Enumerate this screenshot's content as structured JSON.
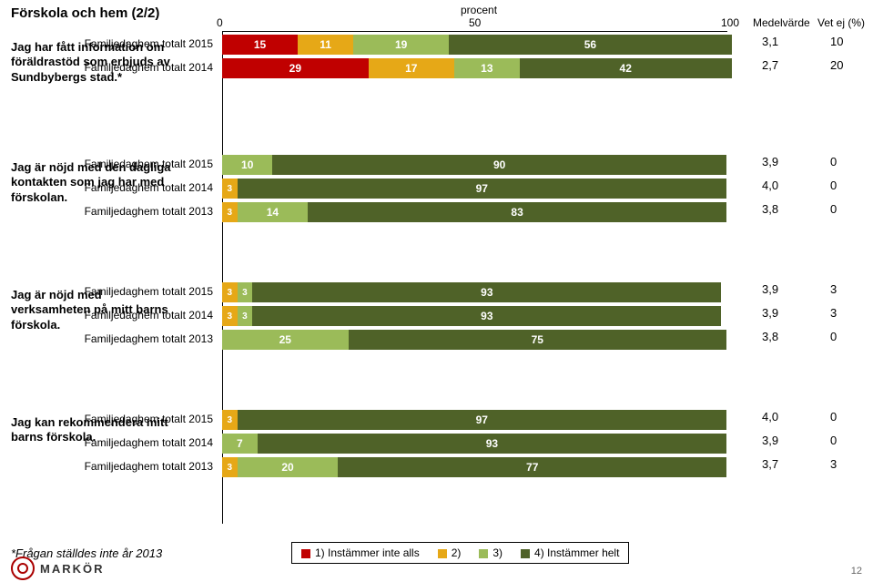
{
  "colors": {
    "c1": "#c00000",
    "c2": "#e6a817",
    "c3": "#9bbb59",
    "c4": "#4f6228",
    "text_on_dark": "#ffffff"
  },
  "title": "Förskola och hem (2/2)",
  "axis_title": "procent",
  "ticks": [
    {
      "v": 0,
      "label": "0"
    },
    {
      "v": 50,
      "label": "50"
    },
    {
      "v": 100,
      "label": "100"
    }
  ],
  "col_medel": "Medelvärde",
  "col_vet": "Vet ej (%)",
  "footnote": "*Frågan ställdes inte år 2013",
  "page_num": "12",
  "logo_text": "MARKÖR",
  "legend": [
    {
      "sw": "c1",
      "label": "1) Instämmer inte alls"
    },
    {
      "sw": "c2",
      "label": "2)"
    },
    {
      "sw": "c3",
      "label": "3)"
    },
    {
      "sw": "c4",
      "label": "4) Instämmer helt"
    }
  ],
  "groups": [
    {
      "question": "Jag har fått information om föräldrastöd som erbjuds av Sundbybergs stad.*",
      "rows": [
        {
          "label": "Familjedaghem totalt 2015",
          "segs": [
            {
              "c": "c1",
              "v": 15,
              "t": "15"
            },
            {
              "c": "c2",
              "v": 11,
              "t": "11"
            },
            {
              "c": "c3",
              "v": 19,
              "t": "19"
            },
            {
              "c": "c4",
              "v": 56,
              "t": "56"
            }
          ],
          "med": "3,1",
          "vet": "10"
        },
        {
          "label": "Familjedaghem totalt 2014",
          "segs": [
            {
              "c": "c1",
              "v": 29,
              "t": "29"
            },
            {
              "c": "c2",
              "v": 17,
              "t": "17"
            },
            {
              "c": "c3",
              "v": 13,
              "t": "13"
            },
            {
              "c": "c4",
              "v": 42,
              "t": "42"
            }
          ],
          "med": "2,7",
          "vet": "20"
        }
      ]
    },
    {
      "question": "Jag är nöjd med den dagliga kontakten som jag har med förskolan.",
      "rows": [
        {
          "label": "Familjedaghem totalt 2015",
          "segs": [
            {
              "c": "c1",
              "v": 0,
              "t": "0"
            },
            {
              "c": "c3",
              "v": 10,
              "t": "10"
            },
            {
              "c": "c4",
              "v": 90,
              "t": "90"
            }
          ],
          "med": "3,9",
          "vet": "0"
        },
        {
          "label": "Familjedaghem totalt 2014",
          "segs": [
            {
              "c": "c1",
              "v": 0,
              "t": "0"
            },
            {
              "c": "c2",
              "v": 3,
              "t": "3"
            },
            {
              "c": "c4",
              "v": 97,
              "t": "97"
            }
          ],
          "med": "4,0",
          "vet": "0"
        },
        {
          "label": "Familjedaghem totalt 2013",
          "segs": [
            {
              "c": "c1",
              "v": 0,
              "t": "0"
            },
            {
              "c": "c2",
              "v": 3,
              "t": "3"
            },
            {
              "c": "c3",
              "v": 14,
              "t": "14"
            },
            {
              "c": "c4",
              "v": 83,
              "t": "83"
            }
          ],
          "med": "3,8",
          "vet": "0"
        }
      ]
    },
    {
      "question": "Jag är nöjd med verksamheten på mitt barns förskola.",
      "rows": [
        {
          "label": "Familjedaghem totalt 2015",
          "segs": [
            {
              "c": "c1",
              "v": 0,
              "t": "0"
            },
            {
              "c": "c2",
              "v": 3,
              "t": "3"
            },
            {
              "c": "c3",
              "v": 3,
              "t": "3"
            },
            {
              "c": "c4",
              "v": 93,
              "t": "93"
            }
          ],
          "med": "3,9",
          "vet": "3"
        },
        {
          "label": "Familjedaghem totalt 2014",
          "segs": [
            {
              "c": "c1",
              "v": 0,
              "t": "0"
            },
            {
              "c": "c2",
              "v": 3,
              "t": "3"
            },
            {
              "c": "c3",
              "v": 3,
              "t": "3"
            },
            {
              "c": "c4",
              "v": 93,
              "t": "93"
            }
          ],
          "med": "3,9",
          "vet": "3"
        },
        {
          "label": "Familjedaghem totalt 2013",
          "segs": [
            {
              "c": "c1",
              "v": 0,
              "t": "0"
            },
            {
              "c": "c3",
              "v": 25,
              "t": "25"
            },
            {
              "c": "c4",
              "v": 75,
              "t": "75"
            }
          ],
          "med": "3,8",
          "vet": "0"
        }
      ]
    },
    {
      "question": "Jag kan rekommendera mitt barns förskola.",
      "rows": [
        {
          "label": "Familjedaghem totalt 2015",
          "segs": [
            {
              "c": "c1",
              "v": 0,
              "t": "0"
            },
            {
              "c": "c2",
              "v": 3,
              "t": "3"
            },
            {
              "c": "c4",
              "v": 97,
              "t": "97"
            }
          ],
          "med": "4,0",
          "vet": "0"
        },
        {
          "label": "Familjedaghem totalt 2014",
          "segs": [
            {
              "c": "c1",
              "v": 0,
              "t": "0"
            },
            {
              "c": "c3",
              "v": 7,
              "t": "7"
            },
            {
              "c": "c4",
              "v": 93,
              "t": "93"
            }
          ],
          "med": "3,9",
          "vet": "0"
        },
        {
          "label": "Familjedaghem totalt 2013",
          "segs": [
            {
              "c": "c1",
              "v": 0,
              "t": "0"
            },
            {
              "c": "c2",
              "v": 3,
              "t": "3"
            },
            {
              "c": "c3",
              "v": 20,
              "t": "20"
            },
            {
              "c": "c4",
              "v": 77,
              "t": "77"
            }
          ],
          "med": "3,7",
          "vet": "3"
        }
      ]
    }
  ]
}
